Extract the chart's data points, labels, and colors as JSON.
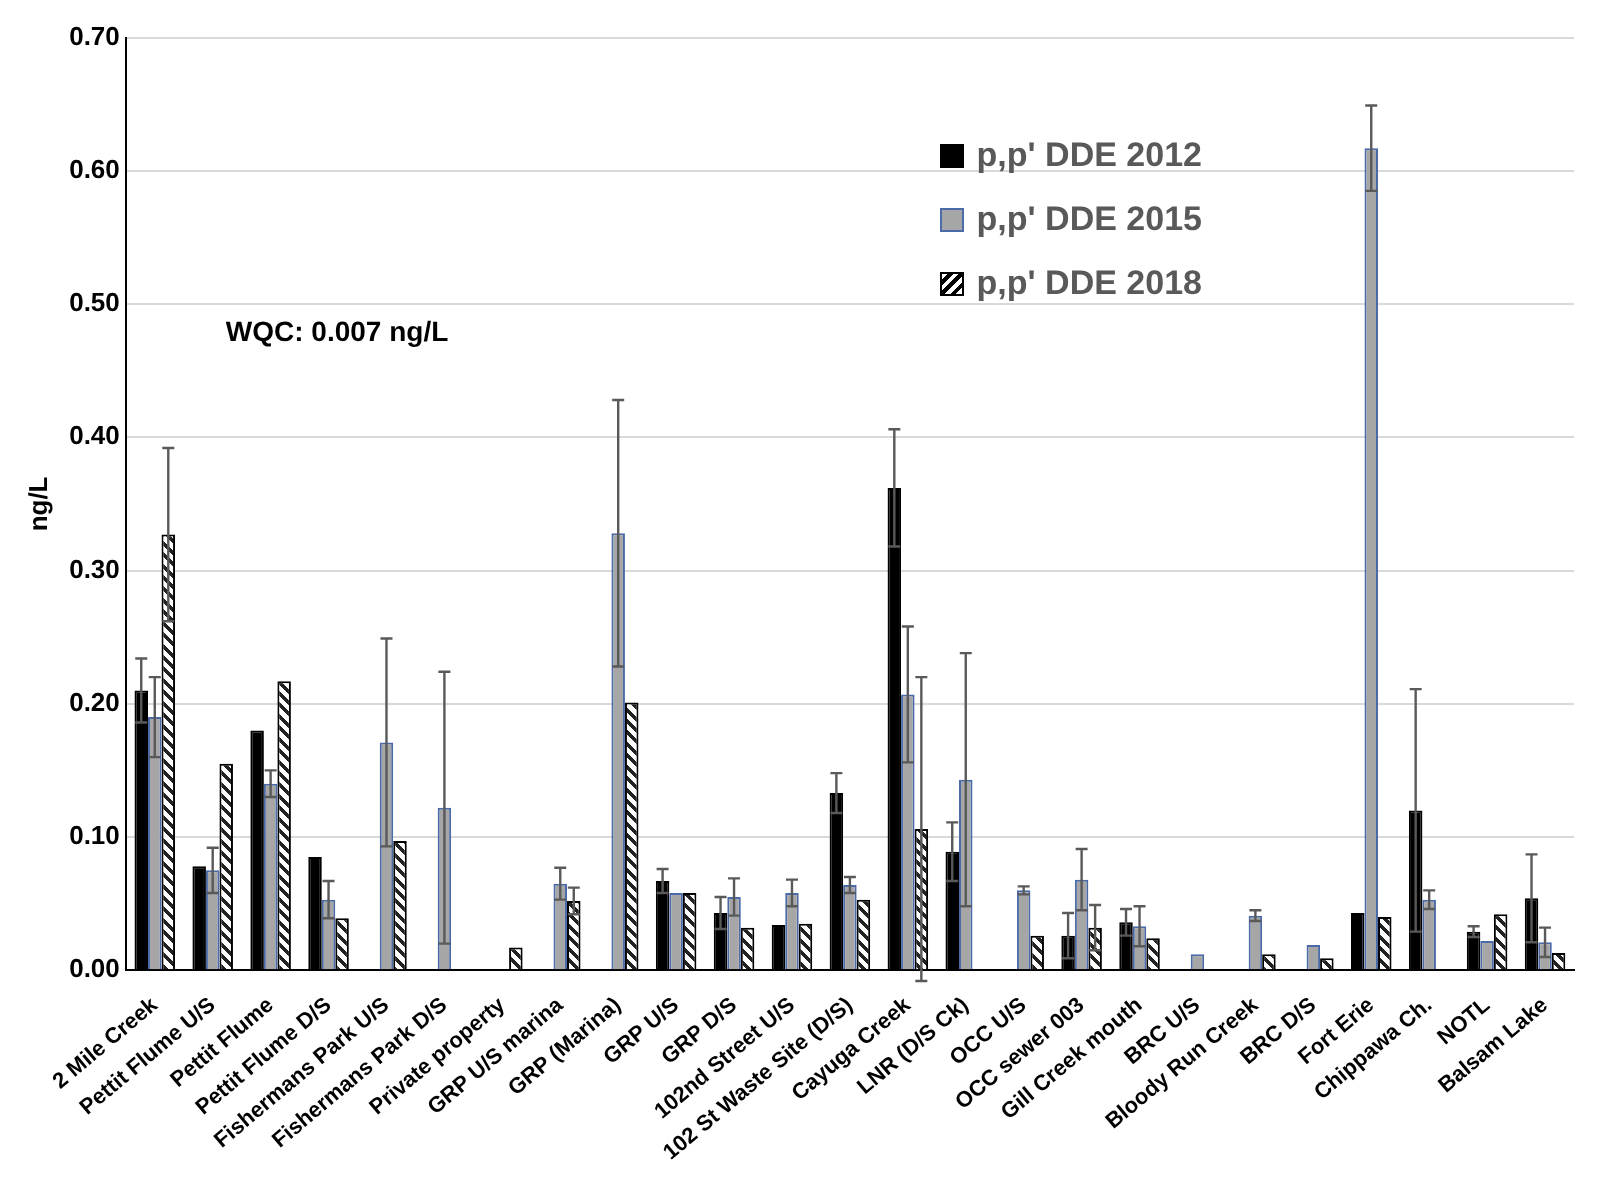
{
  "chart_data": {
    "type": "bar",
    "ylabel": "ng/L",
    "annotations": [
      "WQC: 0.007 ng/L"
    ],
    "categories": [
      "2 Mile Creek",
      "Pettit Flume U/S",
      "Pettit Flume",
      "Pettit Flume D/S",
      "Fishermans Park U/S",
      "Fishermans Park D/S",
      "Private property",
      "GRP U/S marina",
      "GRP (Marina)",
      "GRP U/S",
      "GRP D/S",
      "102nd Street U/S",
      "102 St Waste Site (D/S)",
      "Cayuga Creek",
      "LNR (D/S Ck)",
      "OCC U/S",
      "OCC sewer 003",
      "Gill Creek mouth",
      "BRC U/S",
      "Bloody Run Creek",
      "BRC D/S",
      "Fort Erie",
      "Chippawa Ch.",
      "NOTL",
      "Balsam Lake"
    ],
    "series": [
      {
        "name": "p,p' DDE 2012",
        "color": "#000000",
        "values": [
          0.21,
          0.078,
          0.18,
          0.085,
          null,
          null,
          null,
          null,
          null,
          0.067,
          0.043,
          0.034,
          0.133,
          0.362,
          0.089,
          null,
          0.026,
          0.036,
          null,
          null,
          null,
          0.043,
          0.12,
          0.029,
          0.054
        ],
        "errors": [
          0.024,
          null,
          null,
          null,
          null,
          null,
          null,
          null,
          null,
          0.009,
          0.012,
          null,
          0.015,
          0.044,
          0.022,
          null,
          0.017,
          0.01,
          null,
          null,
          null,
          null,
          0.091,
          0.004,
          0.033
        ]
      },
      {
        "name": "p,p' DDE 2015",
        "color": "#a6a6a6",
        "values": [
          0.19,
          0.075,
          0.14,
          0.053,
          0.171,
          0.122,
          null,
          0.065,
          0.328,
          0.058,
          0.055,
          0.058,
          0.064,
          0.207,
          0.143,
          0.06,
          0.068,
          0.033,
          0.012,
          0.041,
          0.019,
          0.617,
          0.053,
          0.022,
          0.021
        ],
        "errors": [
          0.03,
          0.017,
          0.01,
          0.014,
          0.078,
          0.102,
          null,
          0.012,
          0.1,
          null,
          0.014,
          0.01,
          0.006,
          0.051,
          0.095,
          0.003,
          0.023,
          0.015,
          null,
          0.004,
          null,
          0.032,
          0.007,
          null,
          0.011
        ]
      },
      {
        "name": "p,p' DDE 2018",
        "color": "#ffffff",
        "values": [
          0.327,
          0.155,
          0.217,
          0.039,
          0.097,
          null,
          0.017,
          0.052,
          0.201,
          0.058,
          0.032,
          0.035,
          0.053,
          0.106,
          null,
          0.026,
          0.032,
          0.024,
          null,
          0.012,
          0.009,
          0.04,
          null,
          0.042,
          0.013
        ],
        "errors": [
          0.065,
          null,
          null,
          null,
          null,
          null,
          null,
          0.01,
          null,
          null,
          null,
          null,
          null,
          0.114,
          null,
          null,
          0.017,
          null,
          null,
          null,
          null,
          null,
          null,
          null,
          null
        ]
      }
    ],
    "ylim": [
      0,
      0.7
    ],
    "yticks": [
      {
        "value": 0,
        "label": "0.00"
      },
      {
        "value": 0.1,
        "label": "0.10"
      },
      {
        "value": 0.2,
        "label": "0.20"
      },
      {
        "value": 0.3,
        "label": "0.30"
      },
      {
        "value": 0.4,
        "label": "0.40"
      },
      {
        "value": 0.5,
        "label": "0.50"
      },
      {
        "value": 0.6,
        "label": "0.60"
      },
      {
        "value": 0.7,
        "label": "0.70"
      }
    ],
    "grid": "y",
    "legend": "top right"
  }
}
